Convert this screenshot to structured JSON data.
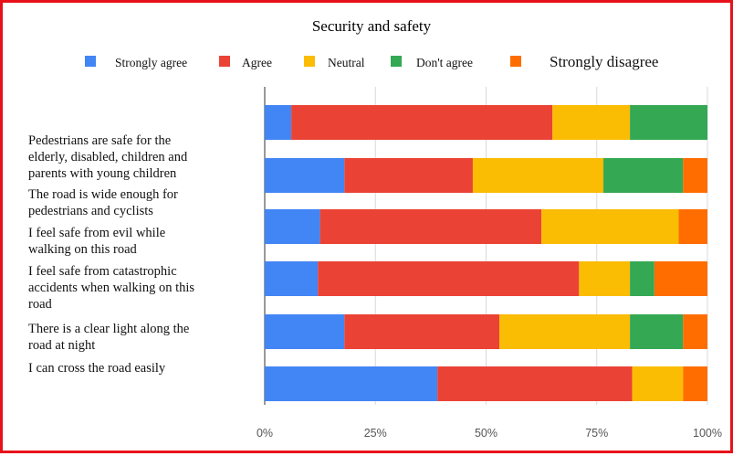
{
  "chart_data": {
    "type": "bar",
    "stacked": true,
    "orientation": "horizontal",
    "percent": true,
    "title": "Security and safety",
    "legend_position": "top",
    "categories": [
      "Pedestrians are safe for the elderly, disabled, children and parents with young children",
      "The road is wide enough for pedestrians and cyclists",
      "I feel safe from evil while walking on this road",
      "I feel safe from catastrophic accidents when walking on this road",
      "There is a clear light along the road at night",
      "I can cross the road easily"
    ],
    "series": [
      {
        "name": "Strongly agree",
        "color": "#4285f4",
        "values": [
          6,
          18,
          12.5,
          12,
          18,
          39
        ]
      },
      {
        "name": "Agree",
        "color": "#ea4335",
        "values": [
          59,
          29,
          50,
          59,
          35,
          44
        ]
      },
      {
        "name": "Neutral",
        "color": "#fbbc04",
        "values": [
          17.5,
          29.5,
          31,
          11.5,
          29.5,
          11.5
        ]
      },
      {
        "name": "Don't agree",
        "color": "#34a853",
        "values": [
          17.5,
          18,
          0,
          5.5,
          12,
          0
        ]
      },
      {
        "name": "Strongly disagree",
        "color": "#ff6d01",
        "values": [
          0,
          5.5,
          6.5,
          12,
          5.5,
          5.5
        ]
      }
    ],
    "x_ticks": [
      "0%",
      "25%",
      "50%",
      "75%",
      "100%"
    ],
    "xlim": [
      0,
      100
    ],
    "grid": true
  }
}
